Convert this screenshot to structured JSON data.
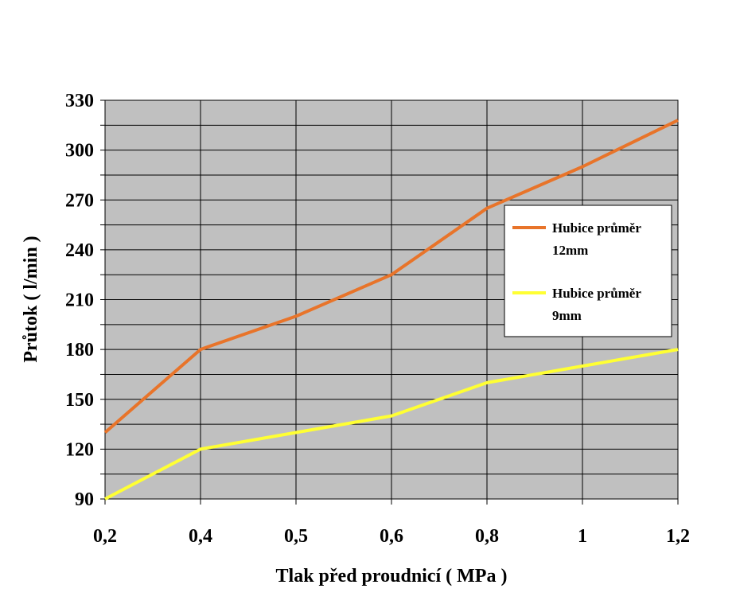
{
  "chart_data": {
    "type": "line",
    "xlabel": "Tlak před proudnicí ( MPa )",
    "ylabel": "Průtok ( l/min )",
    "categories": [
      "0,2",
      "0,4",
      "0,5",
      "0,6",
      "0,8",
      "1",
      "1,2"
    ],
    "ylim": [
      90,
      330
    ],
    "yticks": [
      90,
      120,
      150,
      180,
      210,
      240,
      270,
      300,
      330
    ],
    "minor_step": 15,
    "grid": true,
    "plot_background": "#c0c0c0",
    "legend_position": "right",
    "series": [
      {
        "name_line1": "Hubice průměr",
        "name_line2": "12mm",
        "color": "#e8742a",
        "values": [
          130,
          180,
          200,
          225,
          265,
          290,
          318
        ]
      },
      {
        "name_line1": "Hubice průměr",
        "name_line2": "9mm",
        "color": "#ffff33",
        "values": [
          90,
          120,
          130,
          140,
          160,
          170,
          180
        ]
      }
    ]
  }
}
